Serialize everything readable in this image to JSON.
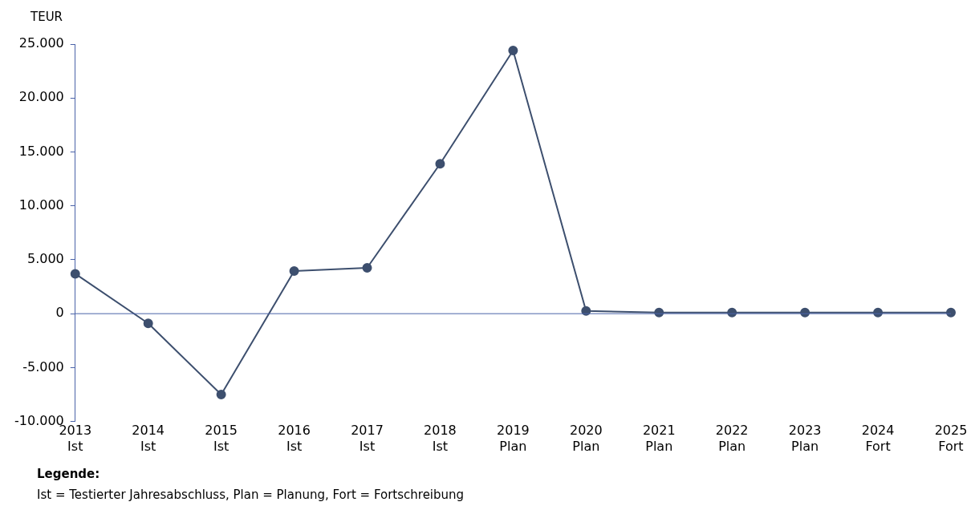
{
  "chart_data": {
    "type": "line",
    "ylabel": "TEUR",
    "categories": [
      "2013\nIst",
      "2014\nIst",
      "2015\nIst",
      "2016\nIst",
      "2017\nIst",
      "2018\nIst",
      "2019\nPlan",
      "2020\nPlan",
      "2021\nPlan",
      "2022\nPlan",
      "2023\nPlan",
      "2024\nFort",
      "2025\nFort"
    ],
    "series": [
      {
        "color": "#3d4f6e",
        "values": [
          3700,
          -900,
          -7500,
          3950,
          4250,
          13900,
          24400,
          250,
          100,
          100,
          100,
          100,
          100
        ]
      }
    ],
    "ylim": [
      -10000,
      25000
    ],
    "yticks": [
      {
        "value": -10000,
        "label": "-10.000"
      },
      {
        "value": -5000,
        "label": "-5.000"
      },
      0,
      {
        "value": 5000,
        "label": "5.000"
      },
      {
        "value": 10000,
        "label": "10.000"
      },
      {
        "value": 15000,
        "label": "15.000"
      },
      {
        "value": 20000,
        "label": "20.000"
      },
      {
        "value": 25000,
        "label": "25.000"
      }
    ],
    "ref_lines": [
      {
        "axis": "y",
        "value": 0,
        "color": "#4a62a8"
      }
    ],
    "marker": "circle",
    "line_style": "solid",
    "grid": false,
    "legend": false,
    "annotations": [
      "Legende:",
      "Ist = Testierter Jahresabschluss, Plan = Planung, Fort = Fortschreibung"
    ]
  }
}
